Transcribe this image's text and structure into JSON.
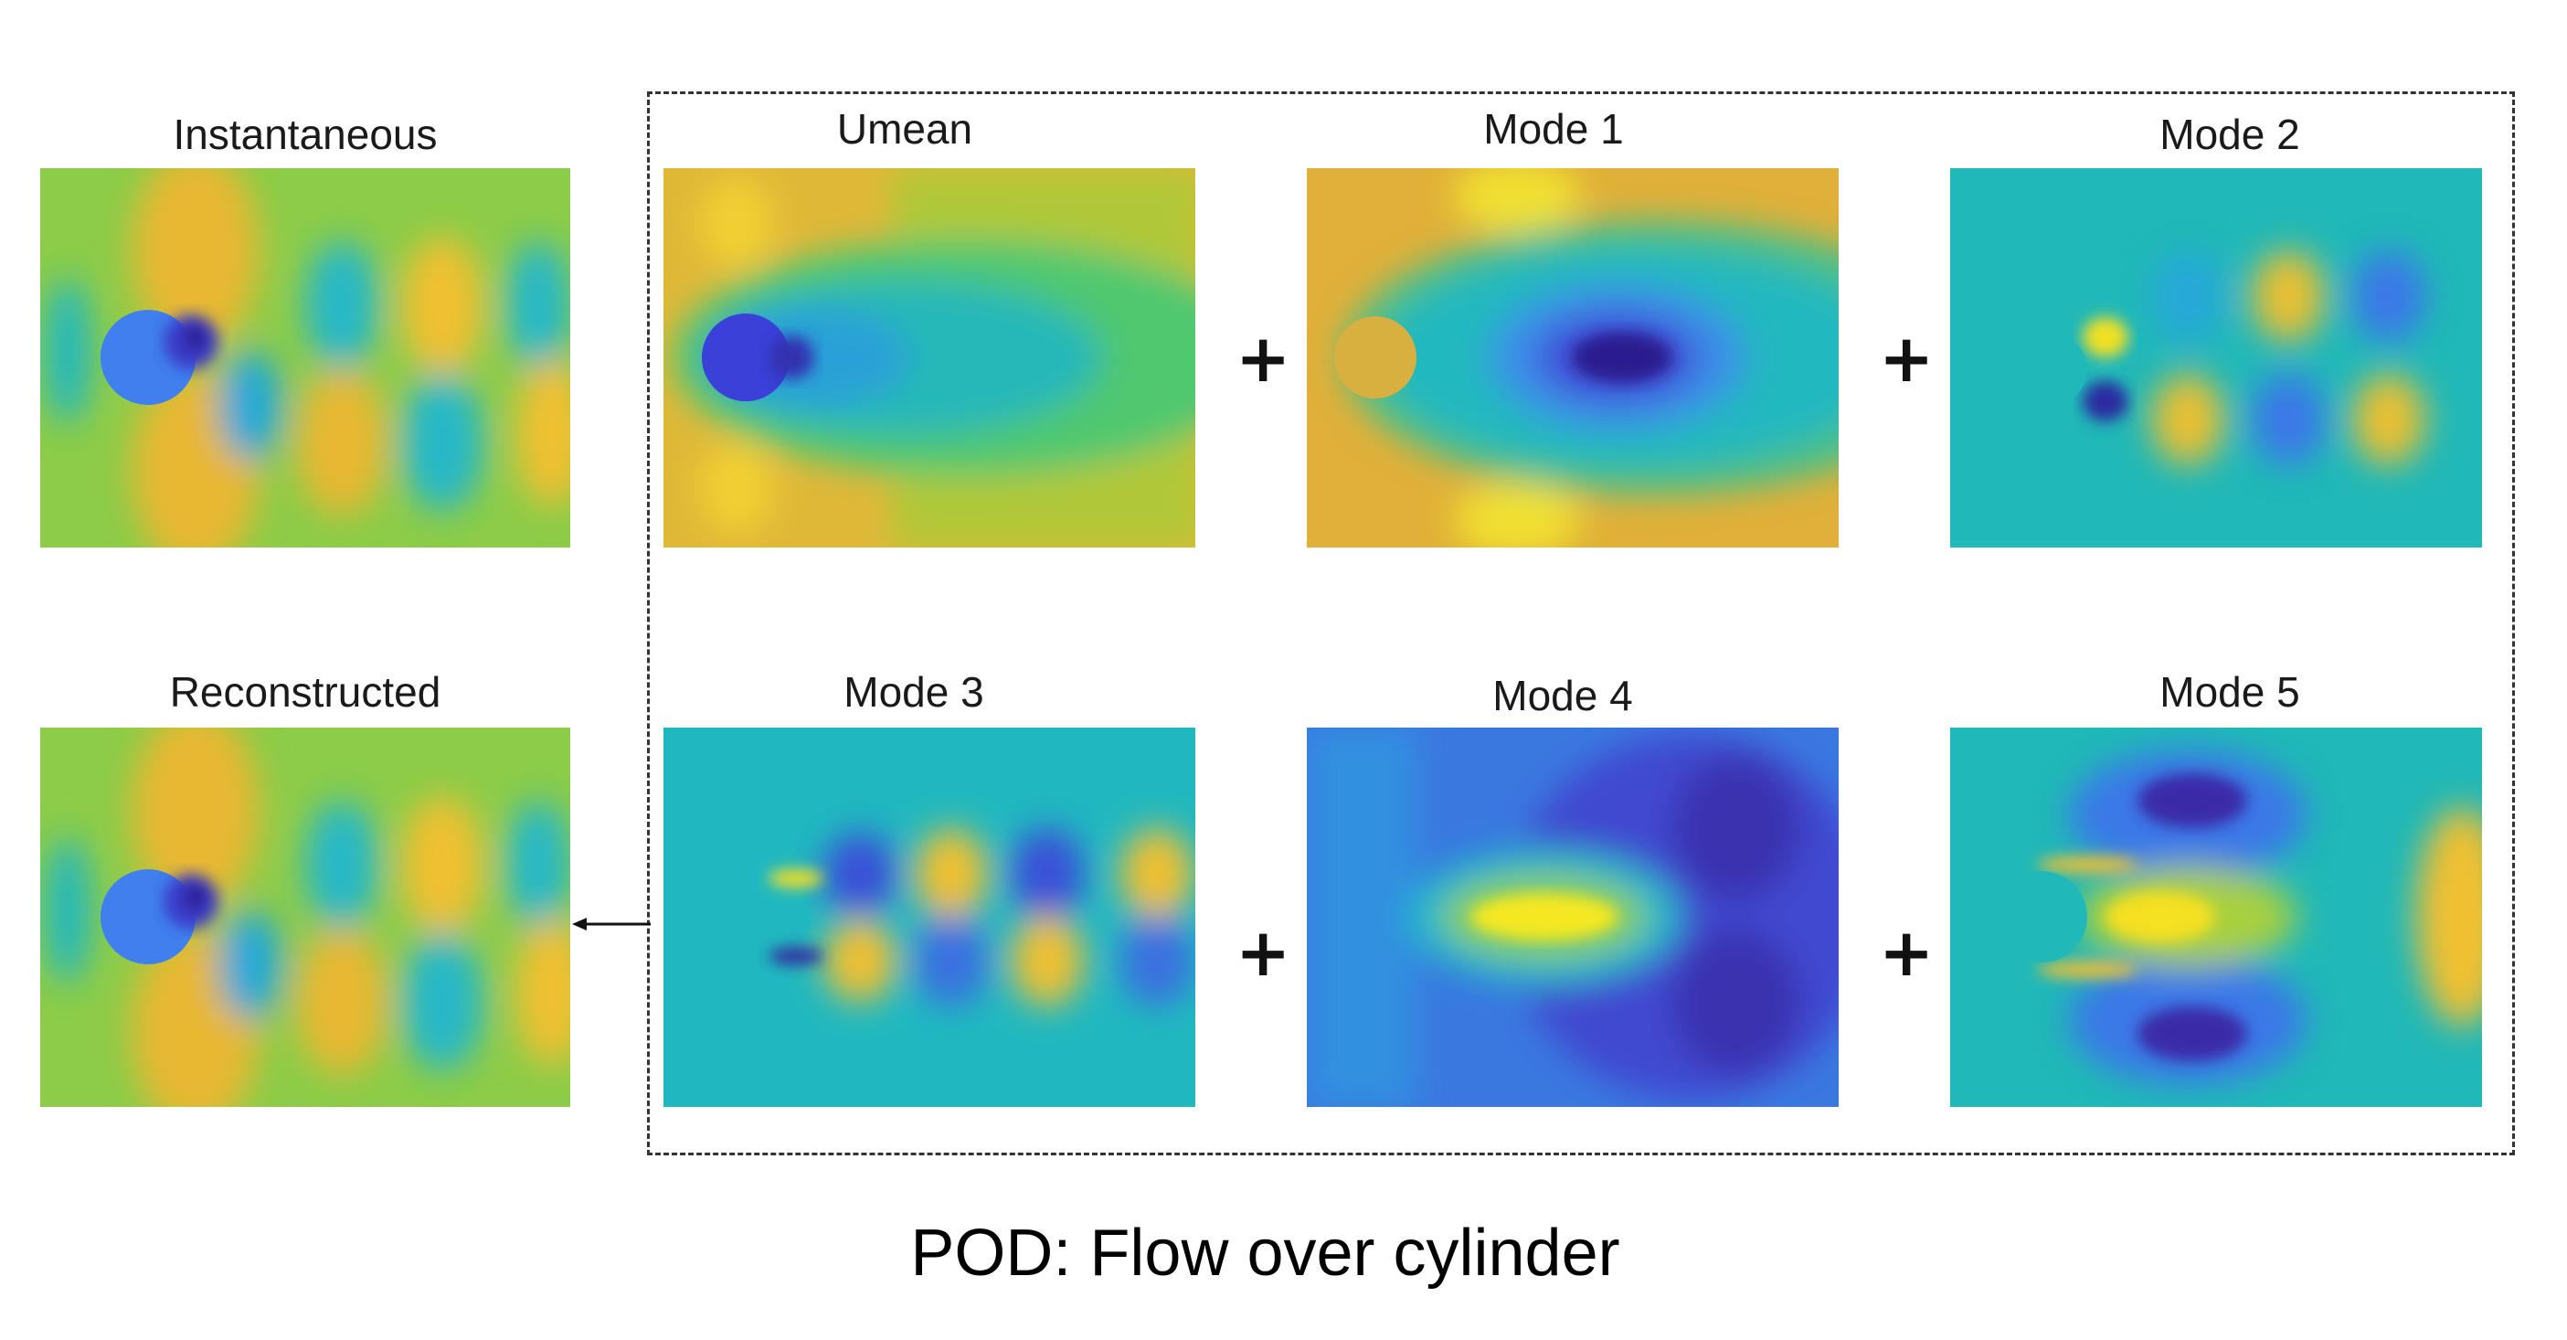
{
  "panels": {
    "instantaneous": "Instantaneous",
    "reconstructed": "Reconstructed",
    "umean": "Umean",
    "mode1": "Mode 1",
    "mode2": "Mode 2",
    "mode3": "Mode 3",
    "mode4": "Mode 4",
    "mode5": "Mode 5"
  },
  "operators": {
    "plus": "+"
  },
  "caption": "POD: Flow over cylinder",
  "colors": {
    "dark_blue": "#3a2fb0",
    "blue": "#3f6ee8",
    "teal": "#1bb5b5",
    "green": "#4fc878",
    "yellow_green": "#a8c830",
    "orange": "#e8b830",
    "yellow": "#f5e820"
  }
}
